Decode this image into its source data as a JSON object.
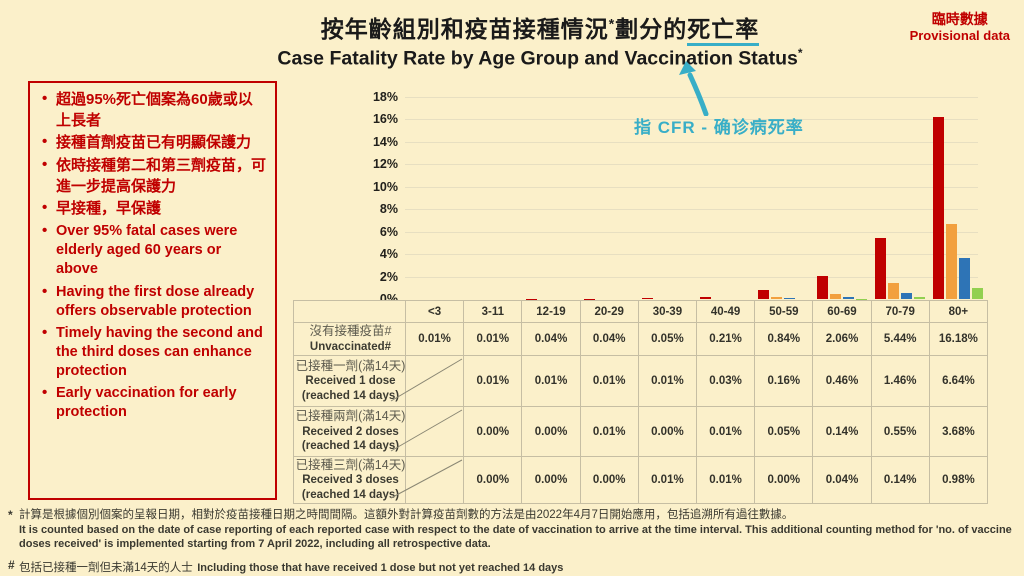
{
  "provisional": {
    "zh": "臨時數據",
    "en": "Provisional data"
  },
  "title": {
    "zh_prefix": "按年齡組別和疫苗接種情況",
    "zh_sup": "*",
    "zh_mid": "劃分的",
    "zh_underlined": "死亡率",
    "en": "Case Fatality Rate by Age Group and Vaccination Status",
    "en_sup": "*"
  },
  "annotation": {
    "text": "指 CFR - 确诊病死率",
    "color": "#38AEC7"
  },
  "key_messages": {
    "zh": [
      "超過95%死亡個案為60歲或以上長者",
      "接種首劑疫苗已有明顯保護力",
      "依時接種第二和第三劑疫苗，可進一步提高保護力",
      "早接種，早保護"
    ],
    "en": [
      "Over 95% fatal cases were elderly aged 60 years or above",
      "Having the first dose already offers observable protection",
      "Timely having the second and the third doses can enhance protection",
      "Early vaccination for early protection"
    ]
  },
  "chart_data": {
    "type": "bar",
    "title": "Case Fatality Rate by Age Group and Vaccination Status",
    "categories": [
      "<3",
      "3-11",
      "12-19",
      "20-29",
      "30-39",
      "40-49",
      "50-59",
      "60-69",
      "70-79",
      "80+"
    ],
    "series": [
      {
        "name_zh": "沒有接種疫苗#",
        "name_en": "Unvaccinated#",
        "color": "#C00000",
        "values": [
          0.01,
          0.01,
          0.04,
          0.04,
          0.05,
          0.21,
          0.84,
          2.06,
          5.44,
          16.18
        ]
      },
      {
        "name_zh": "已接種一劑(滿14天)",
        "name_en": "Received 1 dose (reached 14 days)",
        "color": "#F2A03E",
        "values": [
          null,
          0.01,
          0.01,
          0.01,
          0.01,
          0.03,
          0.16,
          0.46,
          1.46,
          6.64
        ]
      },
      {
        "name_zh": "已接種兩劑(滿14天)",
        "name_en": "Received 2 doses (reached 14 days)",
        "color": "#2E74B6",
        "values": [
          null,
          0.0,
          0.0,
          0.01,
          0.0,
          0.01,
          0.05,
          0.14,
          0.55,
          3.68
        ]
      },
      {
        "name_zh": "已接種三劑(滿14天)",
        "name_en": "Received 3 doses (reached 14 days)",
        "color": "#92D050",
        "values": [
          null,
          0.0,
          0.0,
          0.0,
          0.01,
          0.01,
          0.0,
          0.04,
          0.14,
          0.98
        ]
      }
    ],
    "ylim": [
      0,
      18
    ],
    "ytick_step": 2,
    "ytick_suffix": "%",
    "grid": true,
    "legend_position": "table-rows"
  },
  "table": {
    "col_headers": [
      "<3",
      "3-11",
      "12-19",
      "20-29",
      "30-39",
      "40-49",
      "50-59",
      "60-69",
      "70-79",
      "80+"
    ],
    "rows": [
      {
        "label_zh": "沒有接種疫苗#",
        "label_en": [
          "Unvaccinated#"
        ],
        "cells": [
          "0.01%",
          "0.01%",
          "0.04%",
          "0.04%",
          "0.05%",
          "0.21%",
          "0.84%",
          "2.06%",
          "5.44%",
          "16.18%"
        ]
      },
      {
        "label_zh": "已接種一劑(滿14天)",
        "label_en": [
          "Received 1 dose",
          "(reached 14 days)"
        ],
        "cells": [
          "",
          "0.01%",
          "0.01%",
          "0.01%",
          "0.01%",
          "0.03%",
          "0.16%",
          "0.46%",
          "1.46%",
          "6.64%"
        ]
      },
      {
        "label_zh": "已接種兩劑(滿14天)",
        "label_en": [
          "Received 2 doses",
          "(reached 14 days)"
        ],
        "cells": [
          "",
          "0.00%",
          "0.00%",
          "0.01%",
          "0.00%",
          "0.01%",
          "0.05%",
          "0.14%",
          "0.55%",
          "3.68%"
        ]
      },
      {
        "label_zh": "已接種三劑(滿14天)",
        "label_en": [
          "Received 3 doses",
          "(reached 14 days)"
        ],
        "cells": [
          "",
          "0.00%",
          "0.00%",
          "0.00%",
          "0.01%",
          "0.01%",
          "0.00%",
          "0.04%",
          "0.14%",
          "0.98%"
        ]
      }
    ]
  },
  "footnotes": {
    "star_marker": "*",
    "star_zh": "計算是根據個別個案的呈報日期，相對於疫苗接種日期之時間間隔。這額外對計算疫苗劑數的方法是由2022年4月7日開始應用，包括追溯所有過往數據。",
    "star_en": "It is counted based on the date of case reporting of each reported case with respect to the date of vaccination to arrive at the time interval.  This additional counting method for 'no. of vaccine doses received' is implemented starting from 7 April 2022, including all retrospective data.",
    "hash_marker": "#",
    "hash_zh": "包括已接種一劑但未滿14天的人士",
    "hash_en": "Including those that have received 1 dose but not yet reached 14 days"
  },
  "colors": {
    "background": "#FBF0CA",
    "accent_red": "#C00000",
    "annotation_teal": "#38AEC7",
    "bar_unvaccinated": "#C00000",
    "bar_dose1": "#F2A03E",
    "bar_dose2": "#2E74B6",
    "bar_dose3": "#92D050",
    "table_border": "#C6BEA3"
  }
}
